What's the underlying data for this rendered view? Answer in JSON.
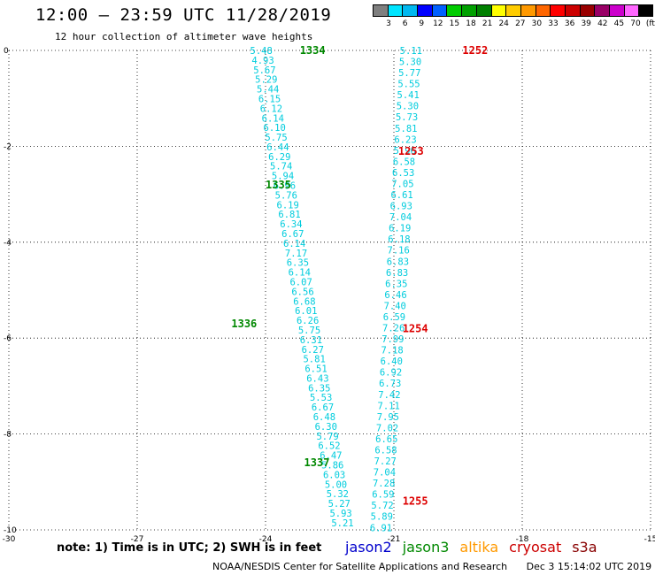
{
  "title": "12:00 – 23:59 UTC 11/28/2019",
  "subtitle": "12 hour collection of altimeter wave heights",
  "colorbar": {
    "colors": [
      "#7f7f7f",
      "#00e5ff",
      "#00b8f0",
      "#0000ff",
      "#0060ff",
      "#00cc00",
      "#00a000",
      "#008000",
      "#ffff00",
      "#ffcc00",
      "#ff9900",
      "#ff6600",
      "#ff0000",
      "#cc0000",
      "#990000",
      "#990066",
      "#cc00cc",
      "#ff66ff",
      "#000000"
    ],
    "labels": [
      "3",
      "6",
      "9",
      "12",
      "15",
      "18",
      "21",
      "24",
      "27",
      "30",
      "33",
      "36",
      "39",
      "42",
      "45",
      "70",
      "(ft)"
    ]
  },
  "axes": {
    "x_ticks": [
      "-30",
      "-27",
      "-24",
      "-21",
      "-18",
      "-15"
    ],
    "y_ticks": [
      "0",
      "-2",
      "-4",
      "-6",
      "-8",
      "-10"
    ]
  },
  "tracks": [
    {
      "satellite": "jason2-colored (cyan)",
      "color": "#00ccdd",
      "passes": [
        {
          "label": "1334",
          "lon": -22.9,
          "lat": 0.0
        },
        {
          "label": "1335",
          "lon": -23.7,
          "lat": -2.8
        },
        {
          "label": "1336",
          "lon": -24.5,
          "lat": -5.7
        }
      ],
      "values": [
        "5.48",
        "4.93",
        "5.67",
        "5.29",
        "5.44",
        "6.15",
        "6.12",
        "6.14",
        "6.10",
        "5.75",
        "6.44",
        "6.29",
        "5.74",
        "5.94",
        "6.96",
        "5.76",
        "6.19",
        "6.81",
        "6.34",
        "6.67",
        "6.14",
        "7.17",
        "6.35",
        "6.14",
        "6.07",
        "6.56",
        "6.68",
        "6.01",
        "6.26",
        "5.75",
        "6.31",
        "6.27",
        "5.81",
        "6.51",
        "6.43",
        "6.35",
        "5.53",
        "6.67",
        "6.48",
        "6.30",
        "5.79",
        "6.52",
        "6.47",
        "5.86",
        "6.03",
        "5.00",
        "5.32",
        "5.27",
        "5.93",
        "5.21"
      ]
    },
    {
      "satellite": "jason3-colored (cyan, ascending)",
      "color": "#00ccdd",
      "passes": [
        {
          "label": "1252",
          "lon": -19.1,
          "lat": 0.0
        },
        {
          "label": "1253",
          "lon": -20.6,
          "lat": -2.1
        },
        {
          "label": "1254",
          "lon": -20.5,
          "lat": -5.8
        },
        {
          "label": "1255",
          "lon": -20.5,
          "lat": -9.4
        },
        {
          "label": "1337",
          "lon": -22.8,
          "lat": -8.6
        }
      ],
      "values": [
        "5.11",
        "5.30",
        "5.77",
        "5.55",
        "5.41",
        "5.30",
        "5.73",
        "5.81",
        "6.23",
        "5.96",
        "6.58",
        "6.53",
        "7.05",
        "6.61",
        "6.93",
        "7.04",
        "6.19",
        "6.18",
        "7.16",
        "6.83",
        "6.83",
        "6.35",
        "6.46",
        "7.40",
        "6.59",
        "7.26",
        "7.99",
        "7.18",
        "6.40",
        "6.92",
        "6.73",
        "7.42",
        "7.11",
        "7.95",
        "7.02",
        "6.65",
        "6.58",
        "7.27",
        "7.04",
        "7.28",
        "6.59",
        "5.72",
        "5.89",
        "6.91"
      ]
    }
  ],
  "note": "note:  1) Time is in UTC;  2) SWH is in feet",
  "legend": [
    {
      "name": "jason2",
      "color": "#0000cc"
    },
    {
      "name": "jason3",
      "color": "#008800"
    },
    {
      "name": "altika",
      "color": "#ff9900"
    },
    {
      "name": "cryosat",
      "color": "#cc0000"
    },
    {
      "name": "s3a",
      "color": "#880000"
    }
  ],
  "footer": {
    "credit": "NOAA/NESDIS Center for Satellite Applications and Research",
    "date": "Dec  3 15:14:02 UTC 2019"
  }
}
